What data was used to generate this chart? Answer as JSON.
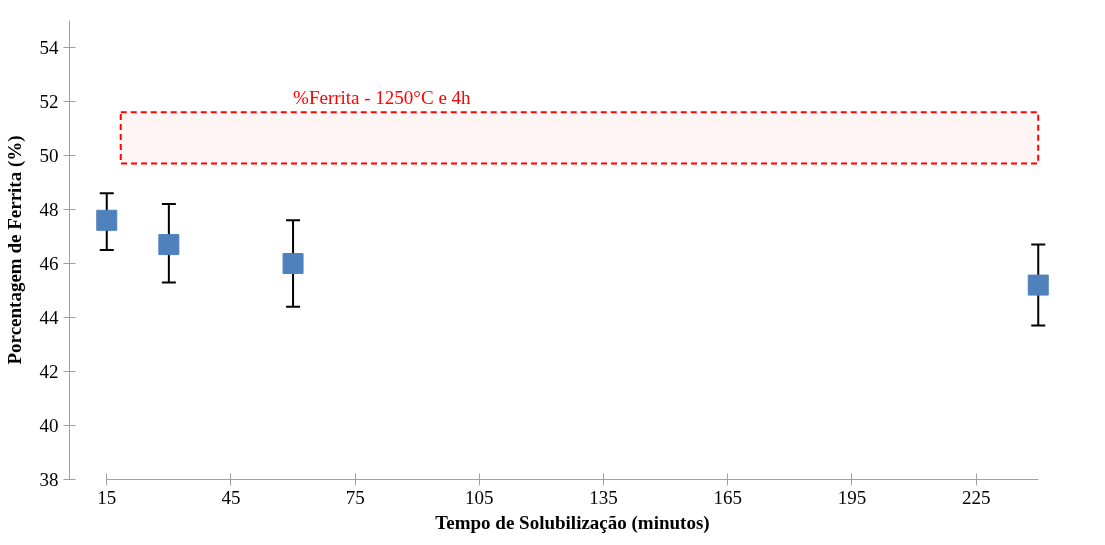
{
  "chart_data": {
    "type": "scatter",
    "xlabel": "Tempo de Solubilização (minutos)",
    "ylabel": "Porcentagem de Ferrita (%)",
    "x": [
      15,
      30,
      60,
      240
    ],
    "series": [
      {
        "color": "#4f81bd",
        "values": [
          47.6,
          46.7,
          46.0,
          45.2
        ],
        "errors": [
          [
            46.5,
            48.6
          ],
          [
            45.3,
            48.2
          ],
          [
            44.4,
            47.6
          ],
          [
            43.7,
            46.7
          ]
        ]
      }
    ],
    "xlim": [
      15,
      240
    ],
    "xticks": [
      15,
      45,
      75,
      105,
      135,
      165,
      195,
      225
    ],
    "ylim": [
      38,
      55
    ],
    "yticks": [
      38,
      40,
      42,
      44,
      46,
      48,
      50,
      52,
      54
    ],
    "bands": [
      {
        "axis": "y",
        "from": 49.7,
        "to": 51.6,
        "label": "%Ferrita - 1250°C e 4h",
        "color": "#ff0000"
      }
    ],
    "marker": "square",
    "grid": false
  }
}
